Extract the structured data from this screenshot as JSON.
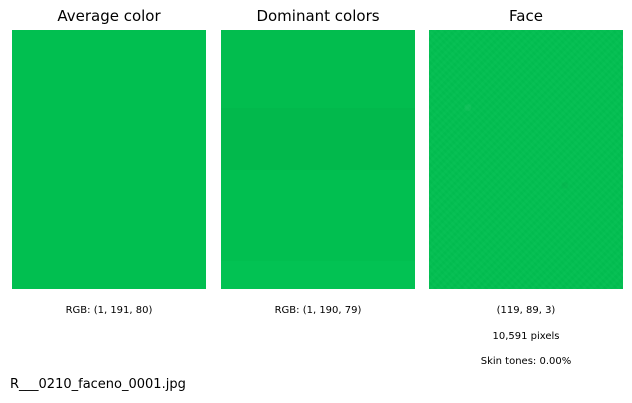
{
  "panels": [
    {
      "title": "Average color",
      "captions": [
        "RGB: (1, 191, 80)"
      ],
      "swatch_color": "#01BF50"
    },
    {
      "title": "Dominant colors",
      "captions": [
        "RGB: (1, 190, 79)"
      ],
      "bands": [
        {
          "color": "#02BD4E",
          "fraction": 0.3
        },
        {
          "color": "#02B94C",
          "fraction": 0.24
        },
        {
          "color": "#01BF50",
          "fraction": 0.35
        },
        {
          "color": "#02C253",
          "fraction": 0.11
        }
      ]
    },
    {
      "title": "Face",
      "captions": [
        "(119, 89, 3)",
        "10,591 pixels",
        "Skin tones: 0.00%"
      ],
      "swatch_color": "#02BF51"
    }
  ],
  "filename": "R___0210_faceno_0001.jpg"
}
